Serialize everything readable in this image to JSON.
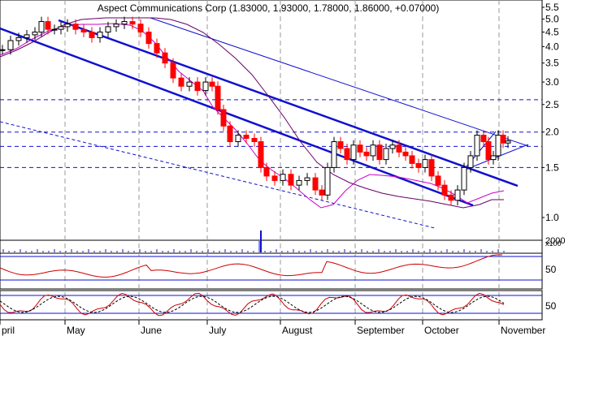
{
  "chart_data": {
    "type": "candlestick",
    "title": "Aspect Communications Corp (1.83000, 1.93000, 1.78000, 1.86000, +0.07000)",
    "price_axis": {
      "scale": "log",
      "ylim": [
        0.9,
        5.9
      ],
      "ticks": [
        {
          "value": 5.5,
          "label": "5.5"
        },
        {
          "value": 5.0,
          "label": "5.0"
        },
        {
          "value": 4.5,
          "label": "4.5"
        },
        {
          "value": 4.0,
          "label": "4.0"
        },
        {
          "value": 3.5,
          "label": "3.5"
        },
        {
          "value": 3.0,
          "label": "3.0"
        },
        {
          "value": 2.5,
          "label": "2.5"
        },
        {
          "value": 2.0,
          "label": "2.0"
        },
        {
          "value": 1.5,
          "label": "1.5"
        },
        {
          "value": 1.0,
          "label": "1.0"
        }
      ]
    },
    "x_axis": {
      "months": [
        "pril",
        "May",
        "June",
        "July",
        "August",
        "September",
        "October",
        "November"
      ]
    },
    "volume_labels": {
      "scale_label": "x100",
      "value_label": "2000"
    },
    "oscillator_1": {
      "label": "50"
    },
    "oscillator_2": {
      "label": "50"
    },
    "horizontal_levels": [
      2.6,
      2.0,
      1.78,
      1.5
    ],
    "grid": true,
    "colors": {
      "up": "#000000",
      "down": "#ff0000",
      "channel": "#0000dd",
      "ma_fast": "#cc00cc",
      "ma_slow": "#660066",
      "oscillator": "#cc0000"
    },
    "price_series": [
      {
        "month": "Apr",
        "close": 3.9
      },
      {
        "month": "Apr",
        "close": 4.6
      },
      {
        "month": "May",
        "close": 4.7
      },
      {
        "month": "May",
        "close": 4.4
      },
      {
        "month": "May",
        "close": 4.8
      },
      {
        "month": "Jun",
        "close": 4.2
      },
      {
        "month": "Jun",
        "close": 3.4
      },
      {
        "month": "Jun",
        "close": 2.9
      },
      {
        "month": "Jul",
        "close": 2.7
      },
      {
        "month": "Jul",
        "close": 1.85
      },
      {
        "month": "Jul",
        "close": 1.9
      },
      {
        "month": "Aug",
        "close": 1.4
      },
      {
        "month": "Aug",
        "close": 1.3
      },
      {
        "month": "Aug",
        "close": 1.15
      },
      {
        "month": "Sep",
        "close": 1.8
      },
      {
        "month": "Sep",
        "close": 1.6
      },
      {
        "month": "Sep",
        "close": 1.75
      },
      {
        "month": "Oct",
        "close": 1.4
      },
      {
        "month": "Oct",
        "close": 1.15
      },
      {
        "month": "Oct",
        "close": 1.95
      },
      {
        "month": "Nov",
        "close": 1.86
      }
    ],
    "last_bar": {
      "open": 1.83,
      "high": 1.93,
      "low": 1.78,
      "close": 1.86,
      "change": 0.07
    }
  }
}
